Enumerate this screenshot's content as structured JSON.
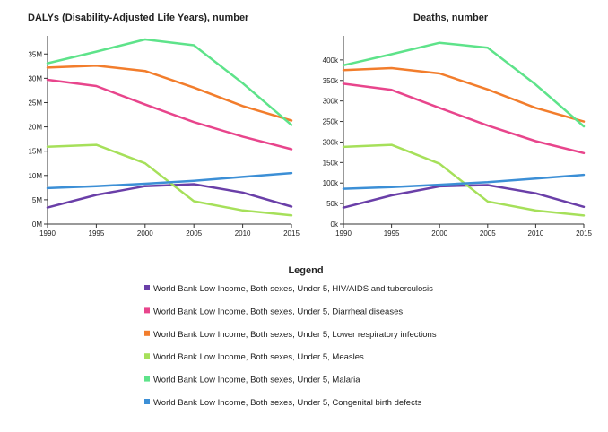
{
  "legend": {
    "title": "Legend"
  },
  "chart_data": [
    {
      "type": "line",
      "title": "DALYs (Disability-Adjusted Life Years), number",
      "x": [
        1990,
        1995,
        2000,
        2005,
        2010,
        2015
      ],
      "ylim": [
        0,
        38000000
      ],
      "y_ticks": [
        0,
        5000000,
        10000000,
        15000000,
        20000000,
        25000000,
        30000000,
        35000000
      ],
      "y_tick_labels": [
        "0M",
        "5M",
        "10M",
        "15M",
        "20M",
        "25M",
        "30M",
        "35M"
      ],
      "grid": false,
      "series": [
        {
          "name": "World Bank Low Income, Both sexes, Under 5, HIV/AIDS and tuberculosis",
          "color": "#6a3fa8",
          "values": [
            3400000,
            6000000,
            7800000,
            8200000,
            6500000,
            3600000
          ]
        },
        {
          "name": "World Bank Low Income, Both sexes, Under 5, Diarrheal diseases",
          "color": "#e8458c",
          "values": [
            29700000,
            28400000,
            24600000,
            21000000,
            18000000,
            15400000
          ]
        },
        {
          "name": "World Bank Low Income, Both sexes, Under 5, Lower respiratory infections",
          "color": "#f27d2c",
          "values": [
            32200000,
            32600000,
            31500000,
            28100000,
            24300000,
            21300000
          ]
        },
        {
          "name": "World Bank Low Income, Both sexes, Under 5, Measles",
          "color": "#a6e05a",
          "values": [
            15900000,
            16300000,
            12500000,
            4700000,
            2800000,
            1800000
          ]
        },
        {
          "name": "World Bank Low Income, Both sexes, Under 5, Malaria",
          "color": "#5ee38a",
          "values": [
            33100000,
            35500000,
            38000000,
            36800000,
            29000000,
            20400000
          ]
        },
        {
          "name": "World Bank Low Income, Both sexes, Under 5, Congenital birth defects",
          "color": "#3c8fd6",
          "values": [
            7400000,
            7800000,
            8300000,
            8900000,
            9700000,
            10500000
          ]
        }
      ]
    },
    {
      "type": "line",
      "title": "Deaths, number",
      "x": [
        1990,
        1995,
        2000,
        2005,
        2010,
        2015
      ],
      "ylim": [
        0,
        450000
      ],
      "y_ticks": [
        0,
        50000,
        100000,
        150000,
        200000,
        250000,
        300000,
        350000,
        400000
      ],
      "y_tick_labels": [
        "0k",
        "50k",
        "100k",
        "150k",
        "200k",
        "250k",
        "300k",
        "350k",
        "400k"
      ],
      "grid": false,
      "series": [
        {
          "name": "World Bank Low Income, Both sexes, Under 5, HIV/AIDS and tuberculosis",
          "color": "#6a3fa8",
          "values": [
            40000,
            70000,
            92000,
            95000,
            75000,
            42000
          ]
        },
        {
          "name": "World Bank Low Income, Both sexes, Under 5, Diarrheal diseases",
          "color": "#e8458c",
          "values": [
            342000,
            327000,
            283000,
            240000,
            202000,
            173000
          ]
        },
        {
          "name": "World Bank Low Income, Both sexes, Under 5, Lower respiratory infections",
          "color": "#f27d2c",
          "values": [
            375000,
            380000,
            367000,
            328000,
            283000,
            250000
          ]
        },
        {
          "name": "World Bank Low Income, Both sexes, Under 5, Measles",
          "color": "#a6e05a",
          "values": [
            188000,
            193000,
            147000,
            55000,
            33000,
            21000
          ]
        },
        {
          "name": "World Bank Low Income, Both sexes, Under 5, Malaria",
          "color": "#5ee38a",
          "values": [
            387000,
            414000,
            442000,
            430000,
            340000,
            238000
          ]
        },
        {
          "name": "World Bank Low Income, Both sexes, Under 5, Congenital birth defects",
          "color": "#3c8fd6",
          "values": [
            86000,
            90000,
            96000,
            102000,
            111000,
            120000
          ]
        }
      ]
    }
  ]
}
